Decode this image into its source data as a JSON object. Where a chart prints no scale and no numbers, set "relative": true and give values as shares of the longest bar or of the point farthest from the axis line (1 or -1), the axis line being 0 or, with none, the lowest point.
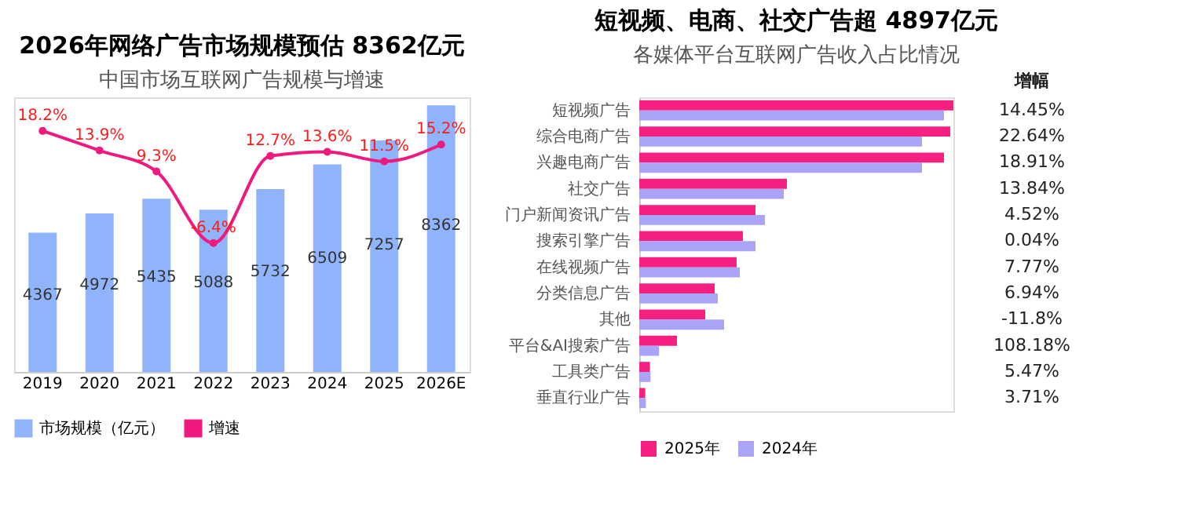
{
  "chart_data": [
    {
      "type": "bar",
      "title": "2026年网络广告市场规模预估 8362亿元",
      "subtitle": "中国市场互联网广告规模与增速",
      "categories": [
        "2019",
        "2020",
        "2021",
        "2022",
        "2023",
        "2024",
        "2025",
        "2026E"
      ],
      "legend": "bottom",
      "grid": false,
      "series": [
        {
          "name": "市场规模（亿元）",
          "color": "#8fb4fb",
          "values": [
            4367,
            4972,
            5435,
            5088,
            5732,
            6509,
            7257,
            8362
          ],
          "value_labels": [
            "4367",
            "4972",
            "5435",
            "5088",
            "5732",
            "6509",
            "7257",
            "8362"
          ]
        },
        {
          "name": "增速",
          "type": "line",
          "axis": "y2",
          "color": "#f0197d",
          "marker": "circle",
          "values": [
            18.2,
            13.9,
            9.3,
            -6.4,
            12.7,
            13.6,
            11.5,
            15.2
          ],
          "value_labels": [
            "18.2%",
            "13.9%",
            "9.3%",
            "-6.4%",
            "12.7%",
            "13.6%",
            "11.5%",
            "15.2%"
          ]
        }
      ]
    },
    {
      "type": "bar",
      "orientation": "horizontal",
      "relative": true,
      "title": "短视频、电商、社交广告超 4897亿元",
      "subtitle": "各媒体平台互联网广告收入占比情况",
      "legend": "bottom",
      "grid": false,
      "categories": [
        "短视频广告",
        "综合电商广告",
        "兴趣电商广告",
        "社交广告",
        "门户新闻资讯广告",
        "搜索引擎广告",
        "在线视频广告",
        "分类信息广告",
        "其他",
        "平台&AI搜索广告",
        "工具类广告",
        "垂直行业广告"
      ],
      "series": [
        {
          "name": "2025年",
          "color": "#f5207f",
          "values": [
            1,
            0.99,
            0.97,
            0.47,
            0.37,
            0.33,
            0.31,
            0.24,
            0.21,
            0.12,
            0.034,
            0.019
          ]
        },
        {
          "name": "2024年",
          "color": "#a9a4f8",
          "values": [
            0.97,
            0.9,
            0.9,
            0.46,
            0.4,
            0.37,
            0.32,
            0.25,
            0.27,
            0.063,
            0.036,
            0.021
          ]
        }
      ],
      "annotations": [
        "增幅",
        "14.45%",
        "22.64%",
        "18.91%",
        "13.84%",
        "4.52%",
        "0.04%",
        "7.77%",
        "6.94%",
        "-11.8%",
        "108.18%",
        "5.47%",
        "3.71%"
      ]
    }
  ]
}
